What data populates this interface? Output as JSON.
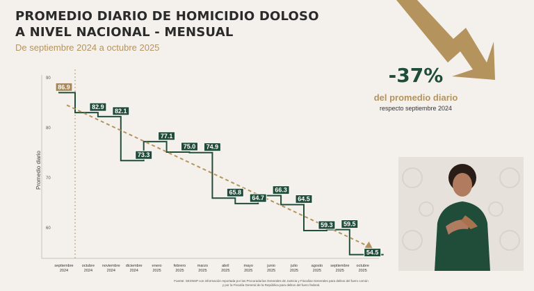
{
  "header": {
    "title_line1": "PROMEDIO DIARIO DE HOMICIDIO DOLOSO",
    "title_line2": "A NIVEL NACIONAL - MENSUAL",
    "subtitle": "De septiembre 2024 a octubre 2025"
  },
  "highlight": {
    "value": "-37%",
    "label": "del promedio diario",
    "sublabel": "respecto septiembre 2024"
  },
  "source": {
    "line1": "Fuente: SESNSP con información reportada por las Procuradurías Generales de Justicia y Fiscalías Generales para delitos del fuero común",
    "line2": "y por la Fiscalía General de la República para delitos del fuero federal."
  },
  "colors": {
    "accent_green": "#1f4d3a",
    "accent_gold": "#b5935c",
    "first_label_bg": "#a8875a"
  },
  "chart_data": {
    "type": "line",
    "ylabel": "Promedio diario",
    "xlabel": "",
    "ylim": [
      55,
      90
    ],
    "yticks": [
      60,
      70,
      80,
      90
    ],
    "step": true,
    "trendline": "dashed",
    "categories": [
      [
        "septiembre",
        "2024"
      ],
      [
        "octubre",
        "2024"
      ],
      [
        "noviembre",
        "2024"
      ],
      [
        "diciembre",
        "2024"
      ],
      [
        "enero",
        "2025"
      ],
      [
        "febrero",
        "2025"
      ],
      [
        "marzo",
        "2025"
      ],
      [
        "abril",
        "2025"
      ],
      [
        "mayo",
        "2025"
      ],
      [
        "junio",
        "2025"
      ],
      [
        "julio",
        "2025"
      ],
      [
        "agosto",
        "2025"
      ],
      [
        "septiembre",
        "2025"
      ],
      [
        "octubre",
        "2025"
      ]
    ],
    "values": [
      86.9,
      82.9,
      82.1,
      73.3,
      77.1,
      75.0,
      74.9,
      65.8,
      64.7,
      66.3,
      64.5,
      59.3,
      59.5,
      54.5
    ],
    "data_labels": [
      "86.9",
      "82.9",
      "82.1",
      "73.3",
      "77.1",
      "75.0",
      "74.9",
      "65.8",
      "64.7",
      "66.3",
      "64.5",
      "59.3",
      "59.5",
      "54.5"
    ]
  }
}
